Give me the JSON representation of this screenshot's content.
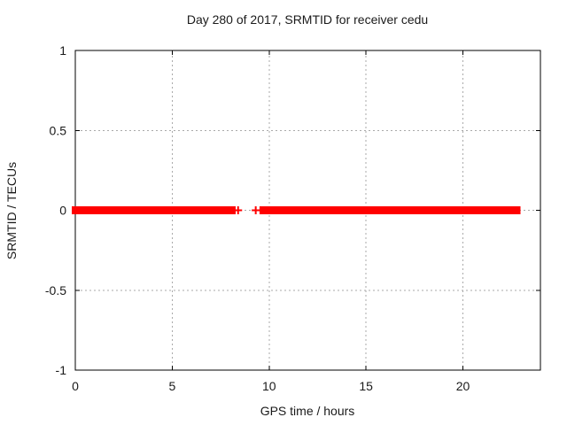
{
  "chart_data": {
    "type": "scatter",
    "title": "Day 280 of 2017, SRMTID for receiver cedu",
    "xlabel": "GPS time / hours",
    "ylabel": "SRMTID / TECUs",
    "xlim": [
      0,
      24
    ],
    "ylim": [
      -1,
      1
    ],
    "xticks": [
      0,
      5,
      10,
      15,
      20
    ],
    "yticks": [
      1,
      0.5,
      0,
      -0.5,
      -1
    ],
    "grid": true,
    "legend": false,
    "marker": "plus",
    "series": [
      {
        "name": "SRMTID",
        "color": "#ff0000",
        "y_value": 0,
        "runs_hours": [
          [
            0.0,
            6.67
          ],
          [
            6.76,
            7.86
          ],
          [
            7.95,
            8.08
          ],
          [
            9.68,
            15.3
          ],
          [
            15.42,
            22.79
          ]
        ],
        "isolated_points_hours": [
          8.4,
          9.31,
          9.55
        ]
      }
    ],
    "colors": {
      "background": "#ffffff",
      "axis": "#000000",
      "grid": "#aaaaaa",
      "text": "#1a1a1a",
      "data": "#ff0000"
    }
  }
}
